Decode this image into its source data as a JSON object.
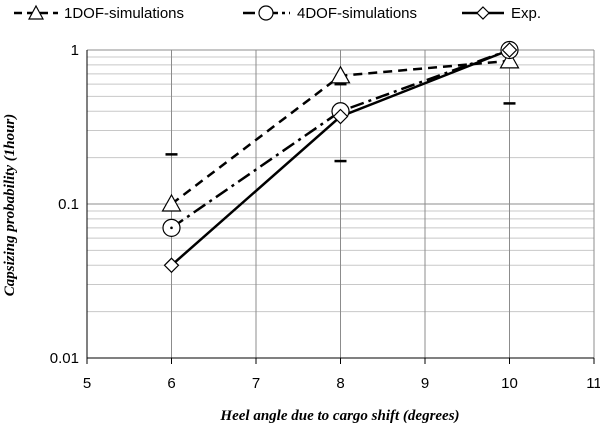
{
  "chart_data": {
    "type": "line",
    "title": "",
    "xlabel": "Heel angle due to cargo shift (degrees)",
    "ylabel": "Capsizing probability (1hour)",
    "yscale": "log",
    "xlim": [
      5,
      11
    ],
    "ylim": [
      0.01,
      1
    ],
    "x_ticks": [
      "5",
      "6",
      "7",
      "8",
      "9",
      "10",
      "11"
    ],
    "y_ticks": [
      "0.01",
      "0.1",
      "1"
    ],
    "grid": true,
    "legend_position": "top",
    "series": [
      {
        "name": "1DOF-simulations",
        "marker": "triangle",
        "line_style": "dashed",
        "x": [
          6,
          8,
          10
        ],
        "y": [
          0.1,
          0.68,
          0.85
        ]
      },
      {
        "name": "4DOF-simulations",
        "marker": "circle",
        "line_style": "dash-dot",
        "x": [
          6,
          8,
          10
        ],
        "y": [
          0.07,
          0.4,
          1.0
        ]
      },
      {
        "name": "Exp.",
        "marker": "diamond",
        "line_style": "solid",
        "x": [
          6,
          8,
          10
        ],
        "y": [
          0.04,
          0.37,
          1.0
        ]
      }
    ],
    "error_marks": [
      {
        "x": 6,
        "y": 0.21
      },
      {
        "x": 8,
        "y": 0.6
      },
      {
        "x": 8,
        "y": 0.19
      },
      {
        "x": 10,
        "y": 0.45
      }
    ]
  }
}
